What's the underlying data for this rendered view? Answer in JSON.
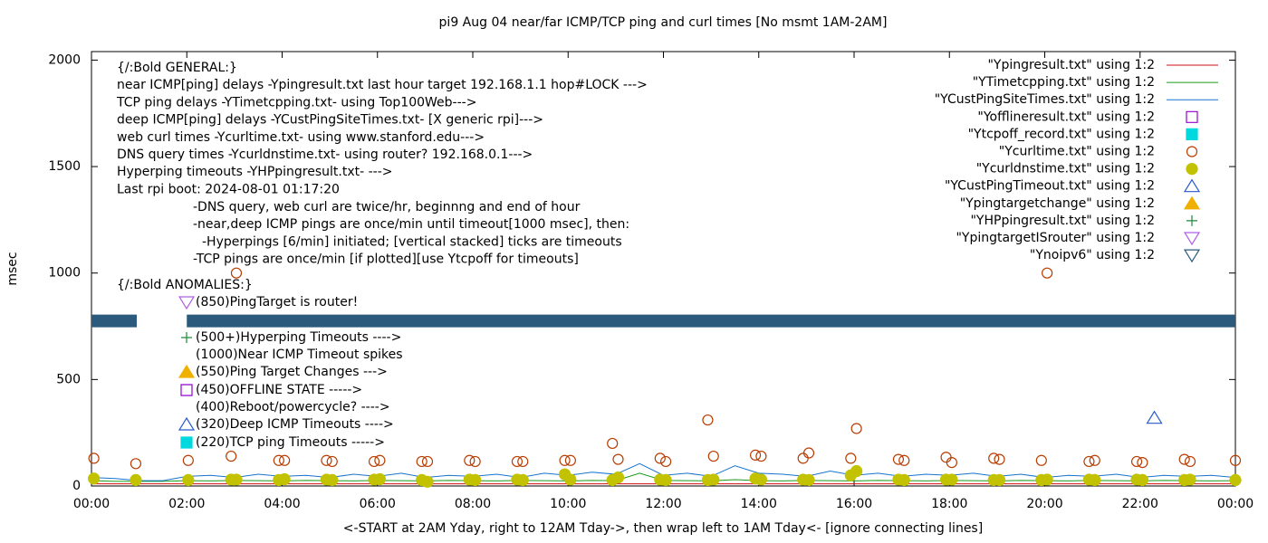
{
  "chart_data": {
    "type": "line",
    "title": "pi9 Aug 04  near/far ICMP/TCP ping and curl times [No msmt 1AM-2AM]",
    "xlabel": "<-START at 2AM Yday, right to 12AM Tday->, then wrap left to 1AM Tday<- [ignore connecting lines]",
    "ylabel": "msec",
    "xlim": [
      0,
      24
    ],
    "ylim": [
      0,
      2040
    ],
    "xticks": [
      {
        "value": 0,
        "label": "00:00"
      },
      {
        "value": 2,
        "label": "02:00"
      },
      {
        "value": 4,
        "label": "04:00"
      },
      {
        "value": 6,
        "label": "06:00"
      },
      {
        "value": 8,
        "label": "08:00"
      },
      {
        "value": 10,
        "label": "10:00"
      },
      {
        "value": 12,
        "label": "12:00"
      },
      {
        "value": 14,
        "label": "14:00"
      },
      {
        "value": 16,
        "label": "16:00"
      },
      {
        "value": 18,
        "label": "18:00"
      },
      {
        "value": 20,
        "label": "20:00"
      },
      {
        "value": 22,
        "label": "22:00"
      },
      {
        "value": 24,
        "label": "00:00"
      }
    ],
    "yticks": [
      0,
      500,
      1000,
      1500,
      2000
    ],
    "legend": "top-right",
    "series": [
      {
        "name": "\"Ypingresult.txt\" using 1:2",
        "color": "#d01010",
        "style": "line",
        "x": [
          0,
          12,
          24
        ],
        "values": [
          10,
          10,
          10
        ]
      },
      {
        "name": "\"YTimetcpping.txt\" using 1:2",
        "color": "#1a9a1a",
        "style": "line",
        "x": [
          0,
          0.5,
          1,
          1.5,
          2,
          2.5,
          3,
          3.5,
          4,
          4.5,
          5,
          5.5,
          6,
          6.5,
          7,
          7.5,
          8,
          8.5,
          9,
          9.5,
          10,
          10.5,
          11,
          11.5,
          12,
          12.5,
          13,
          13.5,
          14,
          14.5,
          15,
          15.5,
          16,
          16.5,
          17,
          17.5,
          18,
          18.5,
          19,
          19.5,
          20,
          20.5,
          21,
          21.5,
          22,
          22.5,
          23,
          23.5,
          24
        ],
        "values": [
          25,
          22,
          22,
          22,
          25,
          24,
          26,
          25,
          24,
          26,
          25,
          24,
          26,
          25,
          24,
          26,
          25,
          24,
          26,
          25,
          24,
          26,
          25,
          60,
          26,
          25,
          24,
          30,
          25,
          24,
          26,
          25,
          24,
          26,
          25,
          24,
          26,
          25,
          24,
          26,
          25,
          24,
          26,
          25,
          24,
          26,
          25,
          24,
          25
        ]
      },
      {
        "name": "\"YCustPingSiteTimes.txt\" using 1:2",
        "color": "#1874cd",
        "style": "line",
        "x": [
          0,
          0.5,
          1,
          1.5,
          2,
          2.5,
          3,
          3.5,
          4,
          4.5,
          5,
          5.5,
          6,
          6.5,
          7,
          7.5,
          8,
          8.5,
          9,
          9.5,
          10,
          10.5,
          11,
          11.5,
          12,
          12.5,
          13,
          13.5,
          14,
          14.5,
          15,
          15.5,
          16,
          16.5,
          17,
          17.5,
          18,
          18.5,
          19,
          19.5,
          20,
          20.5,
          21,
          21.5,
          22,
          22.5,
          23,
          23.5,
          24
        ],
        "values": [
          40,
          35,
          25,
          25,
          45,
          50,
          40,
          55,
          45,
          50,
          40,
          55,
          45,
          60,
          40,
          50,
          45,
          55,
          40,
          60,
          50,
          65,
          55,
          105,
          50,
          60,
          45,
          95,
          60,
          55,
          45,
          70,
          50,
          60,
          45,
          55,
          50,
          60,
          45,
          55,
          40,
          50,
          45,
          55,
          40,
          50,
          45,
          50,
          40
        ]
      },
      {
        "name": "\"Yofflineresult.txt\" using 1:2",
        "color": "#9400d3",
        "style": "points",
        "marker": "square",
        "x": [],
        "values": []
      },
      {
        "name": "\"Ytcpoff_record.txt\" using 1:2",
        "color": "#00d8e0",
        "style": "points",
        "marker": "filled-square",
        "x": [],
        "values": []
      },
      {
        "name": "\"Ycurltime.txt\" using 1:2",
        "color": "#b83c00",
        "style": "points",
        "marker": "circle",
        "x": [
          0.05,
          0.93,
          2.03,
          2.93,
          3.04,
          3.93,
          4.05,
          4.93,
          5.05,
          5.93,
          6.05,
          6.93,
          7.05,
          7.93,
          8.05,
          8.93,
          9.05,
          9.93,
          10.05,
          10.93,
          11.05,
          11.93,
          12.05,
          12.93,
          13.05,
          13.93,
          14.05,
          14.93,
          15.05,
          15.93,
          16.05,
          16.93,
          17.05,
          17.93,
          18.05,
          18.93,
          19.05,
          19.93,
          20.05,
          20.93,
          21.05,
          21.93,
          22.05,
          22.93,
          23.05,
          24.0
        ],
        "values": [
          130,
          105,
          120,
          140,
          1000,
          120,
          120,
          120,
          115,
          115,
          120,
          115,
          115,
          120,
          115,
          115,
          115,
          120,
          120,
          200,
          125,
          130,
          115,
          310,
          140,
          145,
          140,
          130,
          155,
          130,
          270,
          125,
          120,
          135,
          110,
          130,
          125,
          120,
          1000,
          115,
          120,
          115,
          110,
          125,
          115,
          120
        ]
      },
      {
        "name": "\"Ycurldnstime.txt\" using 1:2",
        "color": "#c2c200",
        "style": "points",
        "marker": "filled-circle",
        "x": [
          0.05,
          0.93,
          2.03,
          2.93,
          3.04,
          3.93,
          4.05,
          4.93,
          5.05,
          5.93,
          6.05,
          6.93,
          7.05,
          7.93,
          8.05,
          8.93,
          9.05,
          9.93,
          10.05,
          10.93,
          11.05,
          11.93,
          12.05,
          12.93,
          13.05,
          13.93,
          14.05,
          14.93,
          15.05,
          15.93,
          16.05,
          16.93,
          17.05,
          17.93,
          18.05,
          18.93,
          19.05,
          19.93,
          20.05,
          20.93,
          21.05,
          21.93,
          22.05,
          22.93,
          23.05,
          24.0
        ],
        "values": [
          35,
          28,
          28,
          30,
          30,
          28,
          32,
          30,
          28,
          30,
          32,
          28,
          20,
          30,
          28,
          30,
          28,
          55,
          30,
          28,
          40,
          30,
          28,
          28,
          30,
          35,
          30,
          30,
          28,
          50,
          70,
          30,
          28,
          30,
          30,
          28,
          28,
          28,
          30,
          30,
          28,
          30,
          28,
          28,
          30,
          28
        ]
      },
      {
        "name": "\"YCustPingTimeout.txt\" using 1:2",
        "color": "#2a5ad0",
        "style": "points",
        "marker": "triangle-up",
        "x": [
          22.3
        ],
        "values": [
          320
        ]
      },
      {
        "name": "\"Ypingtargetchange\" using 1:2",
        "color": "#f0b000",
        "style": "points",
        "marker": "filled-triangle-up",
        "x": [],
        "values": []
      },
      {
        "name": "\"YHPpingresult.txt\" using 1:2",
        "color": "#1e8a3a",
        "style": "points",
        "marker": "plus",
        "x": [],
        "values": []
      },
      {
        "name": "\"YpingtargetISrouter\" using 1:2",
        "color": "#b060e8",
        "style": "points",
        "marker": "triangle-down",
        "x": [],
        "values": []
      },
      {
        "name": "\"Ynoipv6\" using 1:2",
        "color": "#2c5a7c",
        "style": "band",
        "marker": "triangle-down",
        "x": [
          0,
          0.95,
          1.5,
          2.0,
          24
        ],
        "values": [
          775,
          775,
          null,
          775,
          775
        ]
      }
    ],
    "general": [
      "{/:Bold GENERAL:}",
      "near ICMP[ping] delays -Ypingresult.txt last hour target 192.168.1.1 hop#LOCK --->",
      "TCP ping delays -YTimetcpping.txt- using Top100Web--->",
      "deep ICMP[ping] delays -YCustPingSiteTimes.txt- [X generic rpi]--->",
      "web curl times -Ycurltime.txt- using www.stanford.edu--->",
      "DNS query times -Ycurldnstime.txt- using router? 192.168.0.1--->",
      "Hyperping timeouts -YHPpingresult.txt- --->",
      "Last rpi boot: 2024-08-01 01:17:20"
    ],
    "notes": [
      "-DNS query, web curl are twice/hr, beginnng and end of hour",
      "-near,deep ICMP pings are once/min until timeout[1000 msec], then:",
      "-Hyperpings [6/min] initiated; [vertical stacked] ticks are timeouts",
      "-TCP pings are once/min [if plotted][use Ytcpoff for timeouts]"
    ],
    "anomalies_title": "{/:Bold ANOMALIES:}",
    "anomalies": [
      {
        "text": "(850)PingTarget is router!",
        "marker": "triangle-down",
        "color": "#b060e8"
      },
      {
        "text": "(500+)Hyperping Timeouts ---->",
        "marker": "plus",
        "color": "#1e8a3a"
      },
      {
        "text": "(1000)Near ICMP Timeout spikes"
      },
      {
        "text": "(550)Ping Target Changes --->",
        "marker": "filled-triangle-up",
        "color": "#f0b000"
      },
      {
        "text": "(450)OFFLINE STATE ----->",
        "marker": "square",
        "color": "#9400d3"
      },
      {
        "text": "(400)Reboot/powercycle? ---->"
      },
      {
        "text": "(320)Deep ICMP Timeouts ---->",
        "marker": "triangle-up",
        "color": "#2a5ad0"
      },
      {
        "text": "(220)TCP ping Timeouts ----->",
        "marker": "filled-square",
        "color": "#00d8e0"
      }
    ]
  }
}
